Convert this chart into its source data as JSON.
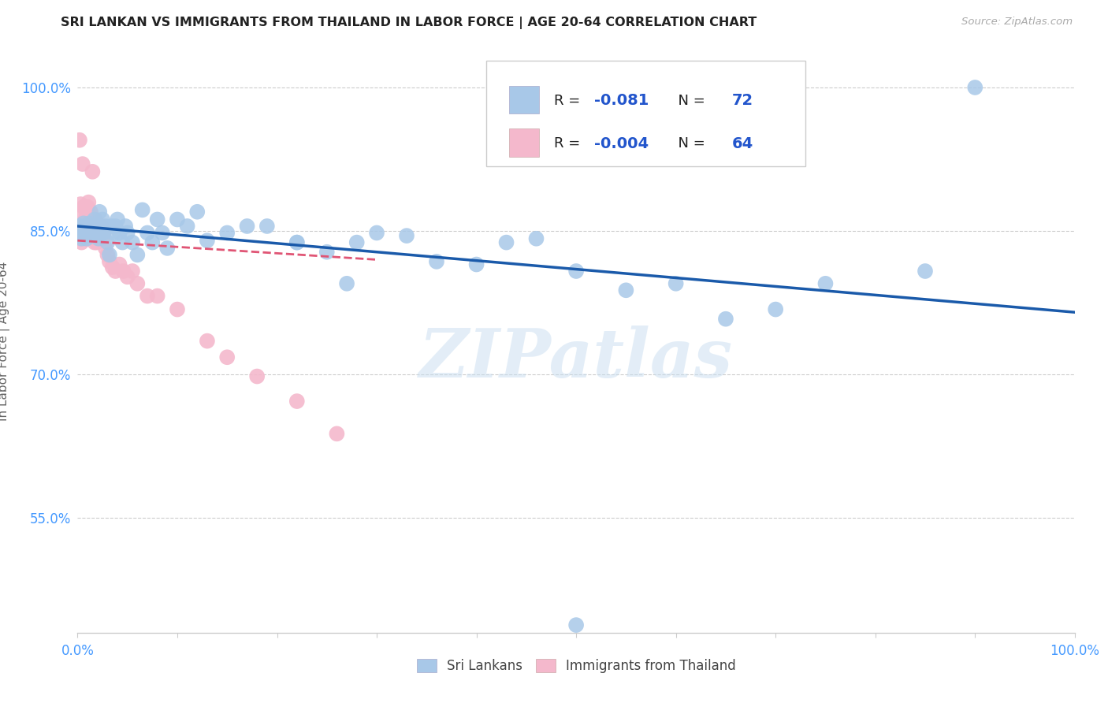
{
  "title": "SRI LANKAN VS IMMIGRANTS FROM THAILAND IN LABOR FORCE | AGE 20-64 CORRELATION CHART",
  "source": "Source: ZipAtlas.com",
  "ylabel": "In Labor Force | Age 20-64",
  "legend_blue_r": "-0.081",
  "legend_blue_n": "72",
  "legend_pink_r": "-0.004",
  "legend_pink_n": "64",
  "blue_color": "#a8c8e8",
  "pink_color": "#f4b8cc",
  "blue_line_color": "#1a5aaa",
  "pink_line_color": "#e05575",
  "watermark_text": "ZIPatlas",
  "blue_points_x": [
    0.001,
    0.002,
    0.003,
    0.004,
    0.005,
    0.006,
    0.007,
    0.008,
    0.009,
    0.01,
    0.011,
    0.012,
    0.013,
    0.014,
    0.015,
    0.016,
    0.017,
    0.018,
    0.019,
    0.02,
    0.021,
    0.022,
    0.023,
    0.024,
    0.025,
    0.026,
    0.028,
    0.03,
    0.032,
    0.034,
    0.036,
    0.038,
    0.04,
    0.042,
    0.045,
    0.048,
    0.05,
    0.055,
    0.06,
    0.065,
    0.07,
    0.075,
    0.08,
    0.085,
    0.09,
    0.1,
    0.11,
    0.12,
    0.13,
    0.15,
    0.17,
    0.19,
    0.22,
    0.25,
    0.28,
    0.3,
    0.33,
    0.36,
    0.4,
    0.43,
    0.46,
    0.5,
    0.55,
    0.6,
    0.65,
    0.7,
    0.75,
    0.85,
    0.9,
    0.22,
    0.27,
    0.5
  ],
  "blue_points_y": [
    0.848,
    0.845,
    0.855,
    0.842,
    0.845,
    0.858,
    0.845,
    0.855,
    0.842,
    0.852,
    0.848,
    0.858,
    0.845,
    0.848,
    0.855,
    0.848,
    0.862,
    0.845,
    0.855,
    0.848,
    0.842,
    0.87,
    0.855,
    0.848,
    0.862,
    0.848,
    0.855,
    0.838,
    0.825,
    0.855,
    0.848,
    0.855,
    0.862,
    0.848,
    0.838,
    0.855,
    0.848,
    0.838,
    0.825,
    0.872,
    0.848,
    0.838,
    0.862,
    0.848,
    0.832,
    0.862,
    0.855,
    0.87,
    0.84,
    0.848,
    0.855,
    0.855,
    0.838,
    0.828,
    0.838,
    0.848,
    0.845,
    0.818,
    0.815,
    0.838,
    0.842,
    0.808,
    0.788,
    0.795,
    0.758,
    0.768,
    0.795,
    0.808,
    1.0,
    0.838,
    0.795,
    0.438
  ],
  "pink_points_x": [
    0.001,
    0.002,
    0.003,
    0.004,
    0.005,
    0.006,
    0.007,
    0.008,
    0.009,
    0.01,
    0.011,
    0.012,
    0.013,
    0.014,
    0.015,
    0.016,
    0.017,
    0.018,
    0.019,
    0.02,
    0.021,
    0.022,
    0.003,
    0.004,
    0.005,
    0.006,
    0.007,
    0.008,
    0.009,
    0.01,
    0.011,
    0.012,
    0.013,
    0.014,
    0.015,
    0.016,
    0.017,
    0.018,
    0.019,
    0.02,
    0.021,
    0.022,
    0.023,
    0.024,
    0.025,
    0.026,
    0.028,
    0.03,
    0.032,
    0.035,
    0.038,
    0.042,
    0.046,
    0.05,
    0.055,
    0.06,
    0.07,
    0.08,
    0.1,
    0.13,
    0.15,
    0.18,
    0.22,
    0.26
  ],
  "pink_points_y": [
    0.848,
    0.945,
    0.842,
    0.838,
    0.92,
    0.875,
    0.848,
    0.862,
    0.842,
    0.855,
    0.88,
    0.852,
    0.87,
    0.845,
    0.912,
    0.852,
    0.845,
    0.862,
    0.838,
    0.848,
    0.855,
    0.848,
    0.878,
    0.848,
    0.865,
    0.855,
    0.842,
    0.858,
    0.865,
    0.875,
    0.855,
    0.845,
    0.858,
    0.842,
    0.848,
    0.858,
    0.838,
    0.848,
    0.842,
    0.855,
    0.845,
    0.852,
    0.845,
    0.855,
    0.842,
    0.848,
    0.832,
    0.825,
    0.818,
    0.812,
    0.808,
    0.815,
    0.808,
    0.802,
    0.808,
    0.795,
    0.782,
    0.782,
    0.768,
    0.735,
    0.718,
    0.698,
    0.672,
    0.638
  ],
  "blue_trend_x": [
    0.0,
    1.0
  ],
  "blue_trend_y": [
    0.855,
    0.765
  ],
  "pink_trend_x": [
    0.0,
    0.3
  ],
  "pink_trend_y": [
    0.84,
    0.82
  ],
  "xlim": [
    0.0,
    1.0
  ],
  "ylim": [
    0.43,
    1.04
  ],
  "y_ticks": [
    0.55,
    0.7,
    0.85,
    1.0
  ],
  "y_tick_labels": [
    "55.0%",
    "70.0%",
    "85.0%",
    "100.0%"
  ],
  "grid_color": "#cccccc",
  "axis_color": "#4499ff",
  "ylabel_color": "#666666",
  "title_color": "#222222",
  "source_color": "#aaaaaa"
}
